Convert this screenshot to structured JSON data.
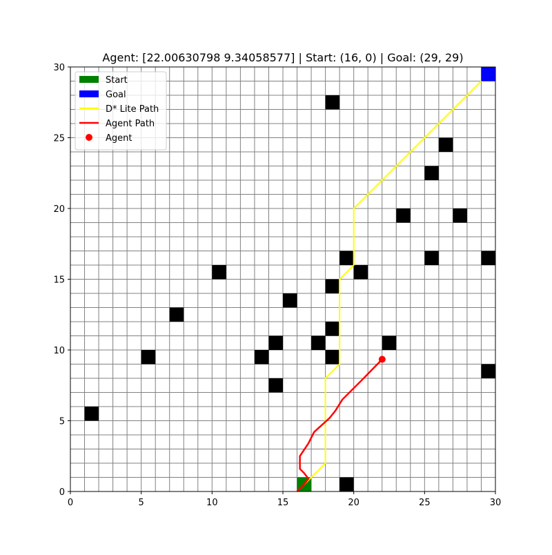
{
  "chart_data": {
    "type": "line",
    "title": "Agent: [22.00630798  9.34058577] | Start: (16, 0) | Goal: (29, 29)",
    "xlim": [
      0,
      30
    ],
    "ylim": [
      0,
      30
    ],
    "grid_size": 30,
    "xticks": [
      0,
      5,
      10,
      15,
      20,
      25,
      30
    ],
    "yticks": [
      0,
      5,
      10,
      15,
      20,
      25,
      30
    ],
    "grid": true,
    "legend_position": "top-left",
    "legend": [
      {
        "label": "Start",
        "kind": "patch",
        "color": "#008000"
      },
      {
        "label": "Goal",
        "kind": "patch",
        "color": "#0000ff"
      },
      {
        "label": "D* Lite Path",
        "kind": "line",
        "color": "#ffff00"
      },
      {
        "label": "Agent Path",
        "kind": "line",
        "color": "#ff0000"
      },
      {
        "label": "Agent",
        "kind": "point",
        "color": "#ff0000"
      }
    ],
    "obstacles": [
      [
        18,
        27
      ],
      [
        26,
        24
      ],
      [
        25,
        22
      ],
      [
        23,
        19
      ],
      [
        27,
        19
      ],
      [
        19,
        16
      ],
      [
        25,
        16
      ],
      [
        29,
        16
      ],
      [
        10,
        15
      ],
      [
        20,
        15
      ],
      [
        18,
        14
      ],
      [
        15,
        13
      ],
      [
        7,
        12
      ],
      [
        18,
        11
      ],
      [
        14,
        10
      ],
      [
        17,
        10
      ],
      [
        22,
        10
      ],
      [
        5,
        9
      ],
      [
        13,
        9
      ],
      [
        18,
        9
      ],
      [
        29,
        8
      ],
      [
        14,
        7
      ],
      [
        1,
        5
      ],
      [
        19,
        0
      ]
    ],
    "start_cell": [
      16,
      0
    ],
    "goal_cell": [
      29,
      29
    ],
    "dstar_path": {
      "name": "D* Lite Path",
      "color": "#ffff00",
      "x": [
        16,
        17,
        18,
        18,
        18,
        19,
        19,
        19,
        20,
        20,
        20,
        21,
        22,
        23,
        24,
        25,
        26,
        27,
        28,
        29
      ],
      "y": [
        0,
        1,
        2,
        5,
        8,
        9,
        12,
        15,
        16,
        19,
        20,
        21,
        22,
        23,
        24,
        25,
        26,
        27,
        28,
        29
      ]
    },
    "agent_path": {
      "name": "Agent Path",
      "color": "#ff0000",
      "x": [
        16.0,
        16.4,
        16.8,
        16.5,
        16.2,
        16.2,
        16.8,
        17.2,
        18.3,
        18.7,
        19.2,
        20.5,
        22.006
      ],
      "y": [
        0.0,
        0.4,
        0.9,
        1.3,
        1.6,
        2.5,
        3.4,
        4.2,
        5.2,
        5.7,
        6.5,
        7.8,
        9.341
      ]
    },
    "agent_position": {
      "name": "Agent",
      "color": "#ff0000",
      "x": 22.00630798,
      "y": 9.34058577
    }
  }
}
